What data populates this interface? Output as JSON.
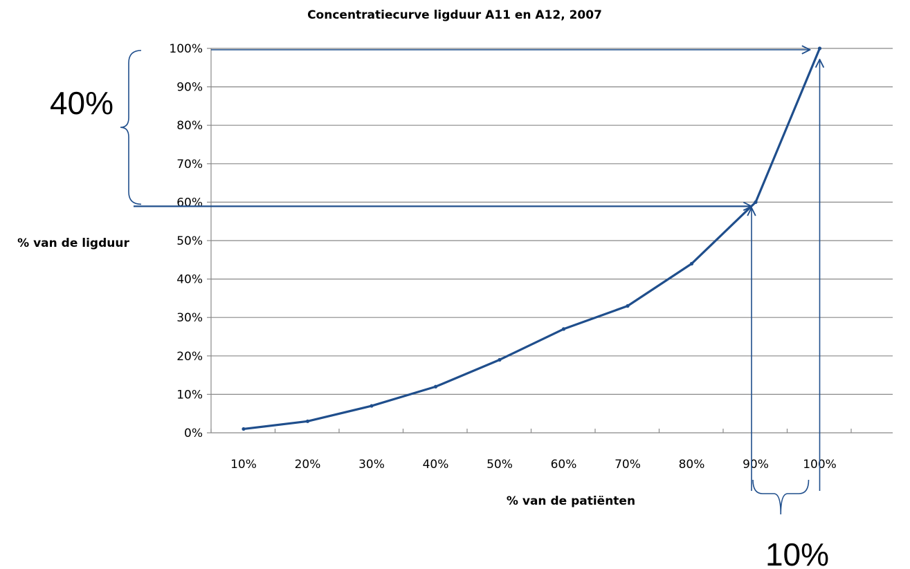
{
  "chart_data": {
    "type": "line",
    "title": "Concentratiecurve ligduur A11 en A12, 2007",
    "xlabel": "% van de patiënten",
    "ylabel": "% van de ligduur",
    "categories": [
      "10%",
      "20%",
      "30%",
      "40%",
      "50%",
      "60%",
      "70%",
      "80%",
      "90%",
      "100%"
    ],
    "x": [
      10,
      20,
      30,
      40,
      50,
      60,
      70,
      80,
      90,
      100
    ],
    "series": [
      {
        "values": [
          1,
          3,
          7,
          12,
          19,
          27,
          33,
          44,
          60,
          100
        ]
      }
    ],
    "yticks": [
      "0%",
      "10%",
      "20%",
      "30%",
      "40%",
      "50%",
      "60%",
      "70%",
      "80%",
      "90%",
      "100%"
    ],
    "ylim": [
      0,
      100
    ],
    "grid": "horizontal",
    "legend": "none",
    "annotations": [
      {
        "text": "40%",
        "spans_y": [
          60,
          100
        ]
      },
      {
        "text": "10%",
        "spans_x": [
          90,
          100
        ]
      }
    ],
    "colors": {
      "line": "#1f4e8c",
      "grid": "#888888",
      "annotation": "#1f4e8c"
    }
  }
}
